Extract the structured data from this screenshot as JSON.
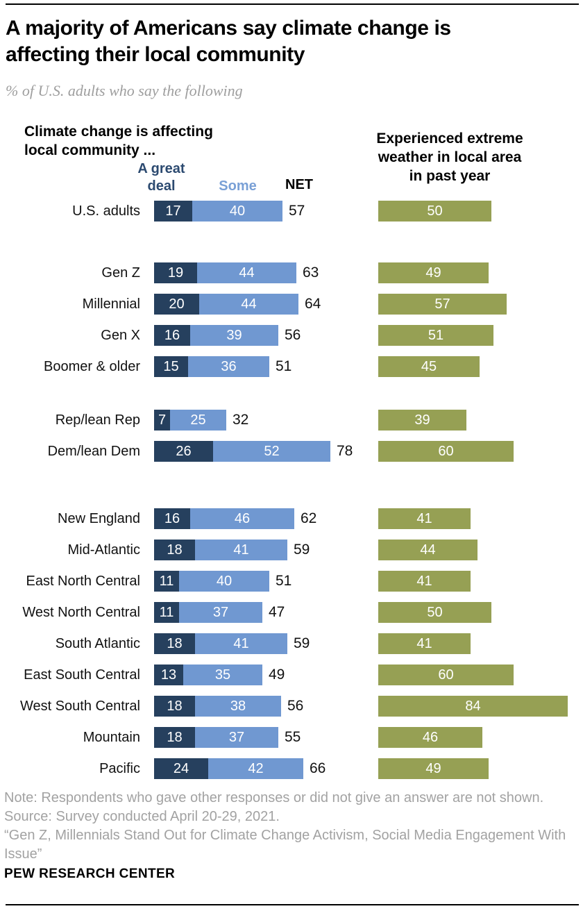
{
  "meta": {
    "title": "A majority of Americans say climate change is\naffecting their local community",
    "subtitle": "% of U.S. adults who say the following"
  },
  "left_chart": {
    "header": "Climate change is affecting\nlocal community ...",
    "col_great_deal": "A great\ndeal",
    "col_some": "Some",
    "col_net": "NET"
  },
  "right_chart": {
    "header": "Experienced extreme\nweather in local area\nin past year"
  },
  "colors": {
    "great_deal": "#26405e",
    "some": "#7098d1",
    "weather": "#96a054"
  },
  "chart_data": {
    "type": "bar",
    "title": "A majority of Americans say climate change is affecting their local community",
    "subtitle": "% of U.S. adults who say the following",
    "orientation": "horizontal",
    "xlim": [
      0,
      100
    ],
    "legend_position": "top",
    "grid": false,
    "categories": [
      "U.S. adults",
      "Gen Z",
      "Millennial",
      "Gen X",
      "Boomer & older",
      "Rep/lean Rep",
      "Dem/lean Dem",
      "New England",
      "Mid-Atlantic",
      "East North Central",
      "West North Central",
      "South Atlantic",
      "East South Central",
      "West South Central",
      "Mountain",
      "Pacific"
    ],
    "series": [
      {
        "name": "A great deal",
        "values": [
          17,
          19,
          20,
          16,
          15,
          7,
          26,
          16,
          18,
          11,
          11,
          18,
          13,
          18,
          18,
          24
        ]
      },
      {
        "name": "Some",
        "values": [
          40,
          44,
          44,
          39,
          36,
          25,
          52,
          46,
          41,
          40,
          37,
          41,
          35,
          38,
          37,
          42
        ]
      },
      {
        "name": "NET",
        "values": [
          57,
          63,
          64,
          56,
          51,
          32,
          78,
          62,
          59,
          51,
          47,
          59,
          49,
          56,
          55,
          66
        ]
      },
      {
        "name": "Experienced extreme weather in local area in past year",
        "values": [
          50,
          49,
          57,
          51,
          45,
          39,
          60,
          41,
          44,
          41,
          50,
          41,
          60,
          84,
          46,
          49
        ]
      }
    ]
  },
  "footer": {
    "note": "Note: Respondents who gave other responses or did not give an answer are not shown.",
    "source": "Source: Survey conducted April 20-29, 2021.",
    "quote": "“Gen Z, Millennials Stand Out for Climate Change Activism, Social Media Engagement With Issue”",
    "brand": "PEW RESEARCH CENTER"
  }
}
